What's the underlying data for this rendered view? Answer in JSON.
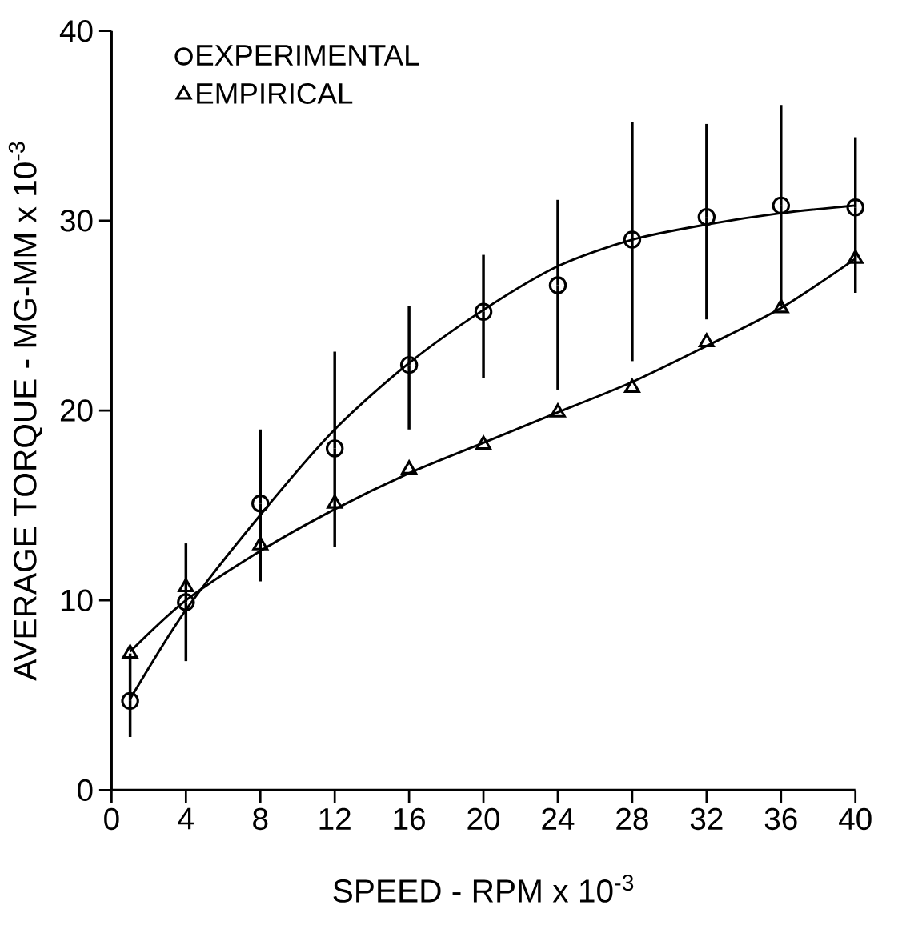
{
  "chart_data": {
    "type": "scatter",
    "xlabel": "SPEED  -  RPM x 10$^{-3}$",
    "ylabel": "AVERAGE   TORQUE   -   MG-MM x 10$^{-3}$",
    "x": [
      1,
      4,
      8,
      12,
      16,
      20,
      24,
      28,
      32,
      36,
      40
    ],
    "series": [
      {
        "name": "EXPERIMENTAL",
        "color": "#000000",
        "marker": "circle",
        "values": [
          4.7,
          9.9,
          15.1,
          18.0,
          22.4,
          25.2,
          26.6,
          29.0,
          30.2,
          30.8,
          30.7
        ],
        "errors": [
          [
            2.8,
            7.2
          ],
          [
            6.8,
            13.0
          ],
          [
            11.0,
            19.0
          ],
          [
            12.8,
            23.1
          ],
          [
            19.0,
            25.5
          ],
          [
            21.7,
            28.2
          ],
          [
            21.1,
            31.1
          ],
          [
            22.6,
            35.2
          ],
          [
            24.8,
            35.1
          ],
          [
            25.5,
            36.1
          ],
          [
            26.2,
            34.4
          ]
        ]
      },
      {
        "name": "EMPIRICAL",
        "color": "#000000",
        "marker": "triangle",
        "values": [
          7.2,
          10.7,
          12.9,
          15.1,
          16.9,
          18.2,
          19.9,
          21.2,
          23.6,
          25.4,
          28.0
        ]
      },
      {
        "type": "line",
        "color": "#000000",
        "marker": "none",
        "x": [
          1,
          4,
          8,
          12,
          16,
          20,
          24,
          28,
          32,
          36,
          40
        ],
        "values": [
          4.8,
          9.5,
          14.5,
          19.0,
          22.5,
          25.3,
          27.6,
          29.0,
          29.8,
          30.4,
          30.8
        ]
      },
      {
        "type": "line",
        "color": "#000000",
        "marker": "none",
        "x": [
          1,
          4,
          8,
          12,
          16,
          20,
          24,
          28,
          32,
          36,
          40
        ],
        "values": [
          7.3,
          10.0,
          12.6,
          14.8,
          16.7,
          18.3,
          19.9,
          21.5,
          23.4,
          25.4,
          28.0
        ]
      }
    ],
    "xlim": [
      0,
      40
    ],
    "ylim": [
      0,
      40
    ],
    "xticks": [
      0,
      4,
      8,
      12,
      16,
      20,
      24,
      28,
      32,
      36,
      40
    ],
    "yticks": [
      0,
      10,
      20,
      30,
      40
    ],
    "legend": "top left"
  }
}
